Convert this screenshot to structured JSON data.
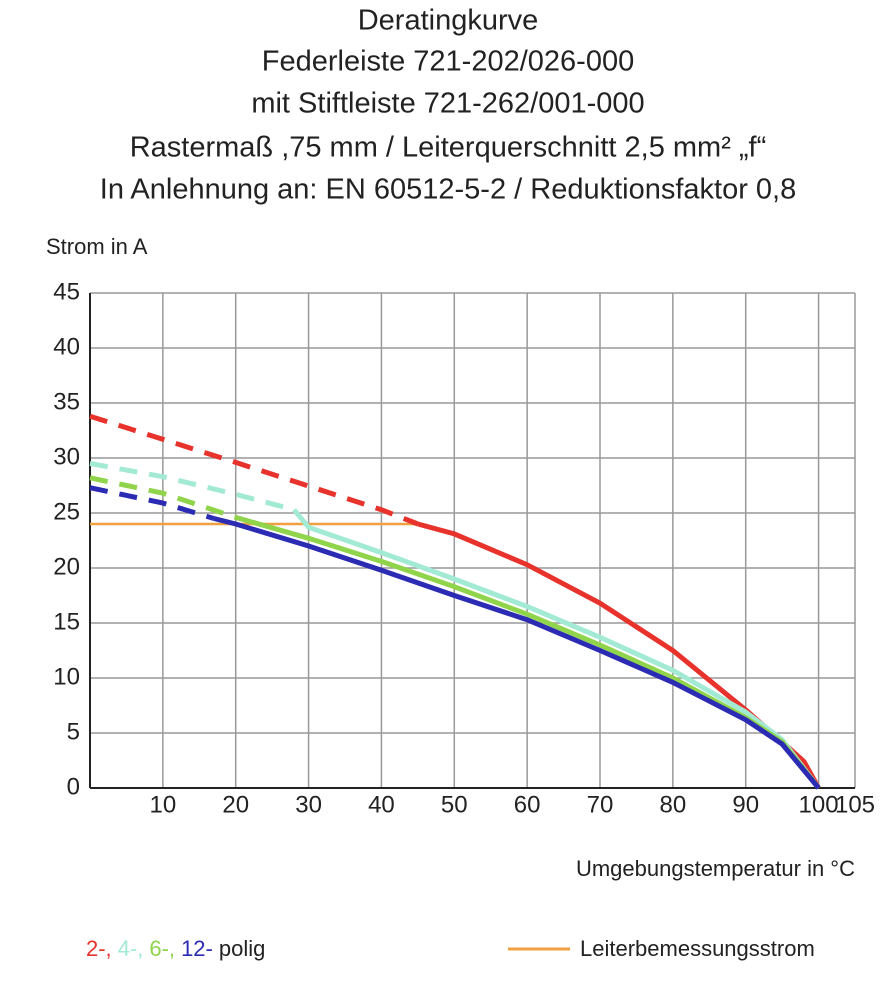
{
  "chart_data": {
    "type": "line",
    "title": [
      "Deratingkurve",
      "Federleiste 721-202/026-000",
      "mit Stiftleiste 721-262/001-000",
      "Rastermaß ,75 mm / Leiterquerschnitt 2,5 mm² „f“",
      "In Anlehnung an: EN 60512-5-2 / Reduktionsfaktor 0,8"
    ],
    "y_label": "Strom in A",
    "x_label": "Umgebungstemperatur in °C",
    "xlim": [
      0,
      105
    ],
    "xticks": [
      10,
      20,
      30,
      40,
      50,
      60,
      70,
      80,
      90,
      100,
      105
    ],
    "ylim": [
      0,
      45
    ],
    "yticks": [
      0,
      5,
      10,
      15,
      20,
      25,
      30,
      35,
      40,
      45
    ],
    "grid": true,
    "legend_suffix": "polig",
    "series": [
      {
        "name": "2-,",
        "color": "#e8322c",
        "dashed_x": 45,
        "x": [
          0,
          20,
          40,
          45,
          50,
          60,
          70,
          80,
          90,
          95,
          98,
          100
        ],
        "values": [
          33.8,
          29.6,
          25.3,
          24,
          23.1,
          20.3,
          16.8,
          12.5,
          7.1,
          4.2,
          2.4,
          0
        ]
      },
      {
        "name": "4-,",
        "color": "#a3ead4",
        "dashed_x": 28,
        "x": [
          0,
          10,
          20,
          28,
          30,
          40,
          50,
          60,
          70,
          80,
          90,
          95,
          100
        ],
        "values": [
          29.5,
          28.3,
          26.7,
          25.3,
          23.7,
          21.4,
          19,
          16.5,
          13.7,
          10.7,
          6.9,
          4.4,
          0
        ]
      },
      {
        "name": "6-,",
        "color": "#8fd44a",
        "dashed_x": 20,
        "x": [
          0,
          10,
          20,
          30,
          40,
          50,
          60,
          70,
          80,
          90,
          95,
          100
        ],
        "values": [
          28.2,
          26.8,
          24.6,
          22.7,
          20.6,
          18.3,
          15.8,
          13,
          10,
          6.4,
          4.2,
          0
        ]
      },
      {
        "name": "12-",
        "color": "#2b2bb3",
        "dashed_x": 17,
        "x": [
          0,
          10,
          17,
          20,
          30,
          40,
          50,
          60,
          70,
          80,
          90,
          95,
          100
        ],
        "values": [
          27.3,
          25.9,
          24.5,
          24,
          22,
          19.8,
          17.5,
          15.3,
          12.5,
          9.6,
          6.2,
          4,
          0
        ]
      },
      {
        "name": "Leiterbemessungsstrom",
        "color": "#f0a040",
        "x": [
          0,
          45
        ],
        "values": [
          24,
          24
        ]
      }
    ]
  }
}
